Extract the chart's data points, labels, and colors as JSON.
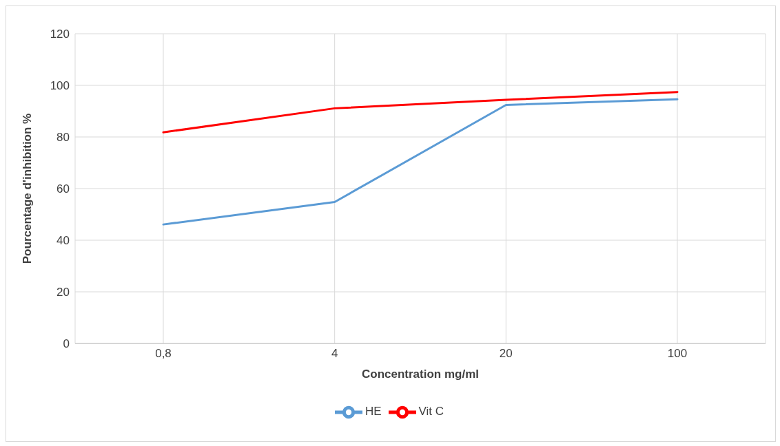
{
  "chart_data": {
    "type": "line",
    "xlabel": "Concentration mg/ml",
    "ylabel": "Pourcentage d'inhibition %",
    "categories": [
      "0,8",
      "4",
      "20",
      "100"
    ],
    "series": [
      {
        "name": "HE",
        "color": "#5b9bd5",
        "values": [
          46.1,
          54.8,
          92.4,
          94.6
        ]
      },
      {
        "name": "Vit C",
        "color": "#ff0000",
        "values": [
          81.8,
          91.1,
          94.4,
          97.4
        ]
      }
    ],
    "ylim": [
      0,
      120
    ],
    "yticks": [
      0,
      20,
      40,
      60,
      80,
      100,
      120
    ],
    "grid": true,
    "legend": "bottom",
    "marker": "none",
    "line_style": "solid"
  }
}
